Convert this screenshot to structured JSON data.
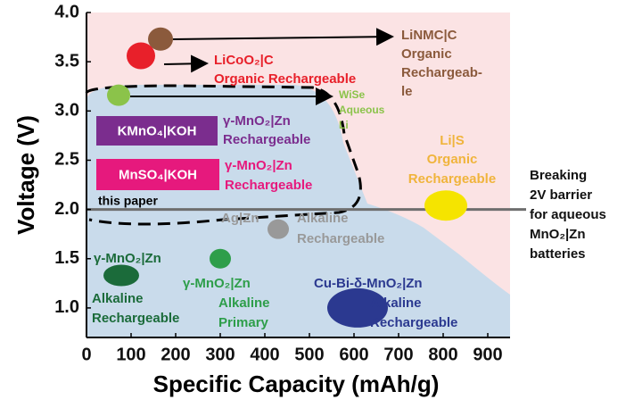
{
  "chart_data": {
    "type": "scatter",
    "xlabel": "Specific Capacity (mAh/g)",
    "ylabel": "Voltage (V)",
    "xlim": [
      0,
      950
    ],
    "ylim": [
      0.7,
      4.0
    ],
    "xticks": [
      0,
      100,
      200,
      300,
      400,
      500,
      600,
      700,
      800,
      900
    ],
    "yticks": [
      {
        "value": 1,
        "label": "1.0"
      },
      1.5,
      {
        "value": 2,
        "label": "2.0"
      },
      2.5,
      {
        "value": 3,
        "label": "3.0"
      },
      3.5,
      {
        "value": 4,
        "label": "4.0"
      }
    ],
    "points": [
      {
        "label": [
          "LiNMC|C",
          "Organic",
          "Rechargeab-",
          "le"
        ],
        "x": 166,
        "y": 3.73,
        "color": "#8b5a3c"
      },
      {
        "label": [
          "LiCoO₂|C",
          "Organic Rechargeable"
        ],
        "x": 122,
        "y": 3.56,
        "color": "#e8202a"
      },
      {
        "label": [
          "WiSe",
          "Aqueous",
          "Li"
        ],
        "x": 72,
        "y": 3.16,
        "color": "#8bc34a"
      },
      {
        "label": [
          "Li|S",
          "Organic",
          "Rechargeable"
        ],
        "x": 806,
        "y": 2.04,
        "color": "#f5e400"
      },
      {
        "label": [
          "Ag|Zn",
          "Alkaline",
          "Rechargeable"
        ],
        "x": 430,
        "y": 1.8,
        "color": "#999999"
      },
      {
        "label": [
          "γ-MnO₂|Zn",
          "Alkaline",
          "Rechargeable"
        ],
        "x": 78,
        "y": 1.33,
        "color": "#1b6b3a"
      },
      {
        "label": [
          "γ-MnO₂|Zn",
          "Alkaline",
          "Primary"
        ],
        "x": 300,
        "y": 1.5,
        "color": "#2e9e4a"
      },
      {
        "label": [
          "Cu-Bi-δ-MnO₂|Zn",
          "Alkaline",
          "Rechargeable"
        ],
        "x": 608,
        "y": 1.0,
        "color": "#2b3990"
      }
    ],
    "boxes": [
      {
        "text": "KMnO₄|KOH",
        "color": "#7b2d8e",
        "note": [
          "γ-MnO₂|Zn",
          "Rechargeable"
        ]
      },
      {
        "text": "MnSO₄|KOH",
        "color": "#e6197d",
        "note": [
          "γ-MnO₂|Zn",
          "Rechargeable"
        ]
      }
    ],
    "region_label": "this paper",
    "reference_line": {
      "y": 2,
      "color": "#6e6e6e",
      "label": [
        "Breaking",
        "2V barrier",
        "for aqueous",
        "MnO₂|Zn",
        "batteries"
      ]
    }
  }
}
